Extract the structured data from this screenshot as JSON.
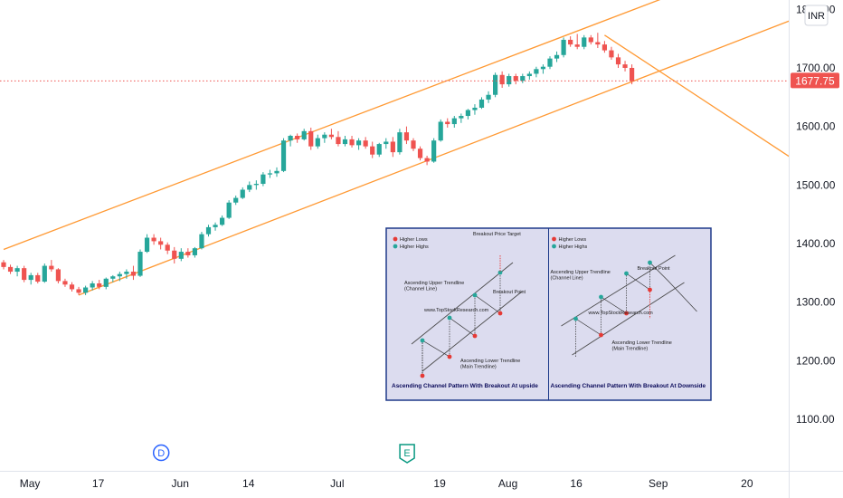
{
  "currency_badge": "INR",
  "last_price_label": "1677.75",
  "colors": {
    "up": "#26a69a",
    "down": "#ef5350",
    "channel": "#ff9933",
    "last_price_line": "#ef5350",
    "axis_text": "#131722",
    "grid_border": "#e0e3eb",
    "inset_bg": "#dcdcef",
    "inset_border": "#1e3a8a"
  },
  "event_markers": [
    {
      "label": "D",
      "date_label": "Jun",
      "color": "#2962ff"
    },
    {
      "label": "E",
      "date_label": "19",
      "color": "#089981"
    }
  ],
  "inset": {
    "panels": [
      {
        "legend": [
          "Higher Lows",
          "Higher Highs"
        ],
        "labels": [
          "Breakout Price Target",
          "Ascending Upper Trendline\n(Channel Line)",
          "Breakout Point",
          "Ascending Lower Trendline\n(Main Trendline)",
          "www.TopStockResearch.com"
        ],
        "title": "Ascending Channel Pattern With Breakout At upside"
      },
      {
        "legend": [
          "Higher Lows",
          "Higher Highs"
        ],
        "labels": [
          "Ascending Upper Trendline\n(Channel Line)",
          "Breakout Point",
          "Ascending Lower Trendline\n(Main Trendline)",
          "www.TopStockResearch.com"
        ],
        "title": "Ascending Channel Pattern With Breakout At Downside"
      }
    ]
  },
  "chart_data": {
    "type": "candlestick",
    "y_axis": {
      "ticks": [
        1100,
        1200,
        1300,
        1400,
        1500,
        1600,
        1700,
        1800
      ],
      "tick_labels": [
        "1100.00",
        "1200.00",
        "1300.00",
        "1400.00",
        "1500.00",
        "1600.00",
        "1700.00",
        "1800.00"
      ],
      "ylim": [
        1030,
        1800
      ]
    },
    "x_axis": {
      "tick_labels": [
        "May",
        "17",
        "Jun",
        "14",
        "Jul",
        "19",
        "Aug",
        "16",
        "Sep",
        "20"
      ],
      "tick_index": [
        2,
        12,
        24,
        34,
        47,
        62,
        72,
        82,
        94,
        107
      ]
    },
    "last_price": 1677.75,
    "candles": [
      [
        1368,
        1372,
        1356,
        1360
      ],
      [
        1360,
        1364,
        1348,
        1352
      ],
      [
        1352,
        1362,
        1344,
        1358
      ],
      [
        1358,
        1362,
        1334,
        1338
      ],
      [
        1338,
        1350,
        1330,
        1346
      ],
      [
        1346,
        1350,
        1332,
        1335
      ],
      [
        1335,
        1366,
        1333,
        1362
      ],
      [
        1362,
        1372,
        1352,
        1356
      ],
      [
        1356,
        1358,
        1332,
        1336
      ],
      [
        1336,
        1340,
        1326,
        1330
      ],
      [
        1330,
        1334,
        1318,
        1322
      ],
      [
        1322,
        1326,
        1312,
        1316
      ],
      [
        1316,
        1328,
        1312,
        1325
      ],
      [
        1325,
        1336,
        1320,
        1332
      ],
      [
        1332,
        1338,
        1322,
        1326
      ],
      [
        1326,
        1342,
        1322,
        1340
      ],
      [
        1340,
        1346,
        1334,
        1344
      ],
      [
        1344,
        1352,
        1336,
        1348
      ],
      [
        1348,
        1356,
        1340,
        1352
      ],
      [
        1352,
        1362,
        1338,
        1345
      ],
      [
        1345,
        1390,
        1343,
        1386
      ],
      [
        1386,
        1416,
        1384,
        1410
      ],
      [
        1410,
        1416,
        1398,
        1404
      ],
      [
        1404,
        1410,
        1390,
        1398
      ],
      [
        1398,
        1402,
        1382,
        1388
      ],
      [
        1388,
        1394,
        1366,
        1374
      ],
      [
        1374,
        1392,
        1370,
        1386
      ],
      [
        1386,
        1392,
        1376,
        1380
      ],
      [
        1380,
        1394,
        1376,
        1392
      ],
      [
        1392,
        1420,
        1390,
        1416
      ],
      [
        1416,
        1432,
        1412,
        1428
      ],
      [
        1428,
        1436,
        1422,
        1432
      ],
      [
        1432,
        1448,
        1430,
        1444
      ],
      [
        1444,
        1474,
        1442,
        1470
      ],
      [
        1470,
        1482,
        1466,
        1478
      ],
      [
        1478,
        1496,
        1476,
        1492
      ],
      [
        1492,
        1506,
        1488,
        1500
      ],
      [
        1500,
        1508,
        1492,
        1502
      ],
      [
        1502,
        1522,
        1498,
        1518
      ],
      [
        1518,
        1526,
        1512,
        1520
      ],
      [
        1520,
        1530,
        1514,
        1524
      ],
      [
        1524,
        1580,
        1522,
        1576
      ],
      [
        1576,
        1586,
        1566,
        1584
      ],
      [
        1584,
        1588,
        1572,
        1578
      ],
      [
        1578,
        1596,
        1576,
        1592
      ],
      [
        1592,
        1598,
        1560,
        1566
      ],
      [
        1566,
        1586,
        1562,
        1580
      ],
      [
        1580,
        1590,
        1572,
        1586
      ],
      [
        1586,
        1596,
        1578,
        1582
      ],
      [
        1582,
        1592,
        1566,
        1570
      ],
      [
        1570,
        1584,
        1566,
        1578
      ],
      [
        1578,
        1584,
        1564,
        1568
      ],
      [
        1568,
        1580,
        1560,
        1576
      ],
      [
        1576,
        1582,
        1562,
        1566
      ],
      [
        1566,
        1574,
        1546,
        1552
      ],
      [
        1552,
        1572,
        1548,
        1570
      ],
      [
        1570,
        1580,
        1562,
        1574
      ],
      [
        1574,
        1582,
        1548,
        1556
      ],
      [
        1556,
        1596,
        1552,
        1590
      ],
      [
        1590,
        1600,
        1570,
        1576
      ],
      [
        1576,
        1580,
        1558,
        1562
      ],
      [
        1562,
        1566,
        1542,
        1546
      ],
      [
        1546,
        1550,
        1534,
        1540
      ],
      [
        1540,
        1580,
        1538,
        1576
      ],
      [
        1576,
        1612,
        1574,
        1608
      ],
      [
        1608,
        1614,
        1598,
        1604
      ],
      [
        1604,
        1618,
        1598,
        1614
      ],
      [
        1614,
        1622,
        1606,
        1618
      ],
      [
        1618,
        1630,
        1612,
        1628
      ],
      [
        1628,
        1638,
        1620,
        1632
      ],
      [
        1632,
        1650,
        1630,
        1646
      ],
      [
        1646,
        1660,
        1640,
        1654
      ],
      [
        1654,
        1692,
        1650,
        1688
      ],
      [
        1688,
        1694,
        1666,
        1672
      ],
      [
        1672,
        1690,
        1668,
        1686
      ],
      [
        1686,
        1690,
        1672,
        1678
      ],
      [
        1678,
        1690,
        1674,
        1686
      ],
      [
        1686,
        1694,
        1680,
        1690
      ],
      [
        1690,
        1702,
        1684,
        1698
      ],
      [
        1698,
        1706,
        1690,
        1702
      ],
      [
        1702,
        1720,
        1698,
        1716
      ],
      [
        1716,
        1728,
        1710,
        1722
      ],
      [
        1722,
        1752,
        1718,
        1748
      ],
      [
        1748,
        1754,
        1736,
        1740
      ],
      [
        1740,
        1758,
        1732,
        1736
      ],
      [
        1736,
        1756,
        1732,
        1752
      ],
      [
        1752,
        1756,
        1740,
        1744
      ],
      [
        1744,
        1760,
        1734,
        1740
      ],
      [
        1740,
        1746,
        1726,
        1730
      ],
      [
        1730,
        1736,
        1714,
        1718
      ],
      [
        1718,
        1724,
        1700,
        1706
      ],
      [
        1706,
        1712,
        1694,
        1700
      ],
      [
        1700,
        1706,
        1672,
        1677.75
      ]
    ]
  }
}
